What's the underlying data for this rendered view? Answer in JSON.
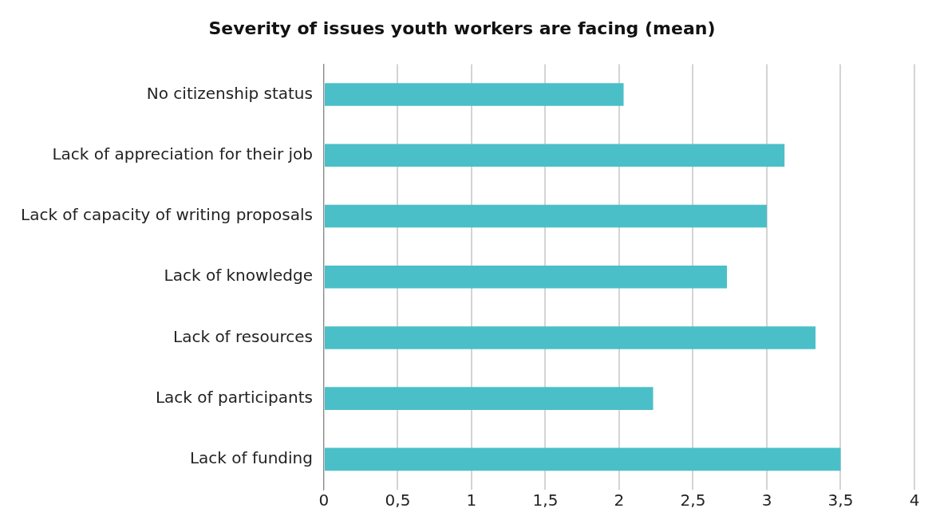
{
  "chart_data": {
    "type": "bar",
    "orientation": "horizontal",
    "title": "Severity of issues youth workers are facing (mean)",
    "categories": [
      "No citizenship status",
      "Lack of appreciation for their job",
      "Lack of capacity of writing proposals",
      "Lack of knowledge",
      "Lack of resources",
      "Lack of participants",
      "Lack of funding"
    ],
    "values": [
      2.03,
      3.12,
      3.0,
      2.73,
      3.33,
      2.23,
      3.5
    ],
    "color": "#4bbfc8",
    "xlim": [
      0,
      4
    ],
    "xticks": [
      0,
      {
        "value": 0.5,
        "label": "0,5"
      },
      1,
      {
        "value": 1.5,
        "label": "1,5"
      },
      2,
      {
        "value": 2.5,
        "label": "2,5"
      },
      3,
      {
        "value": 3.5,
        "label": "3,5"
      },
      4
    ],
    "grid": "x",
    "legend": false
  }
}
